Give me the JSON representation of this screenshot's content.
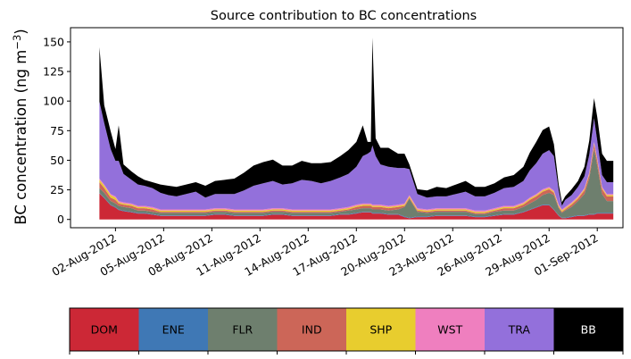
{
  "chart_data": {
    "type": "area",
    "stacked": true,
    "title": "Source contribution to BC concentrations",
    "xlabel": "",
    "ylabel": "BC concentration (ng m",
    "ylabel_superscript": "−3",
    "ylabel_close": ")",
    "ylim": [
      -7,
      162
    ],
    "xlim_days": [
      -1.8,
      32.6
    ],
    "x_origin": "01-Aug-2012",
    "y_ticks": [
      0,
      25,
      50,
      75,
      100,
      125,
      150
    ],
    "y_tick_labels": [
      "0",
      "25",
      "50",
      "75",
      "100",
      "125",
      "150"
    ],
    "x_ticks_days": [
      1,
      4,
      7,
      10,
      13,
      16,
      19,
      22,
      25,
      28,
      31
    ],
    "x_tick_labels": [
      "02-Aug-2012",
      "05-Aug-2012",
      "08-Aug-2012",
      "11-Aug-2012",
      "14-Aug-2012",
      "17-Aug-2012",
      "20-Aug-2012",
      "23-Aug-2012",
      "26-Aug-2012",
      "29-Aug-2012",
      "01-Sep-2012"
    ],
    "x": [
      0,
      0.3,
      0.7,
      1.0,
      1.2,
      1.5,
      2.0,
      2.4,
      2.8,
      3.3,
      3.8,
      4.3,
      4.8,
      5.4,
      6.0,
      6.6,
      7.2,
      7.8,
      8.4,
      9.0,
      9.6,
      10.2,
      10.8,
      11.4,
      12.0,
      12.6,
      13.2,
      13.8,
      14.4,
      15.0,
      15.5,
      16.0,
      16.4,
      16.7,
      16.9,
      17.0,
      17.2,
      17.5,
      18.0,
      18.6,
      19.0,
      19.3,
      19.8,
      20.4,
      21.0,
      21.6,
      22.2,
      22.8,
      23.4,
      24.0,
      24.6,
      25.2,
      25.8,
      26.4,
      26.8,
      27.2,
      27.6,
      28.0,
      28.3,
      28.6,
      28.8,
      29.0,
      29.4,
      29.8,
      30.2,
      30.5,
      30.8,
      31.0,
      31.3,
      31.6,
      32.0
    ],
    "series": [
      {
        "name": "DOM",
        "color": "#cc2836",
        "values": [
          22,
          18,
          12,
          10,
          8,
          7,
          6,
          5,
          5,
          4,
          3,
          3,
          3,
          3,
          3,
          3,
          4,
          4,
          3,
          3,
          3,
          3,
          4,
          4,
          3,
          3,
          3,
          3,
          3,
          4,
          4,
          5,
          6,
          6,
          6,
          5,
          5,
          5,
          4,
          4,
          2,
          1,
          2,
          2,
          3,
          3,
          3,
          3,
          2,
          2,
          3,
          4,
          4,
          6,
          8,
          10,
          12,
          12,
          8,
          3,
          1,
          1,
          2,
          3,
          3,
          4,
          4,
          5,
          5,
          5,
          5
        ]
      },
      {
        "name": "ENE",
        "color": "#3f78b5",
        "values": [
          0.5,
          0.5,
          0.5,
          0.5,
          0.5,
          0.5,
          0.5,
          0.5,
          0.5,
          0.5,
          0.5,
          0.5,
          0.5,
          0.5,
          0.5,
          0.5,
          0.5,
          0.5,
          0.5,
          0.5,
          0.5,
          0.5,
          0.5,
          0.5,
          0.5,
          0.5,
          0.5,
          0.5,
          0.5,
          0.5,
          0.5,
          0.5,
          0.5,
          0.5,
          0.5,
          0.5,
          0.5,
          0.5,
          0.5,
          0.5,
          0.5,
          0.5,
          0.5,
          0.5,
          0.5,
          0.5,
          0.5,
          0.5,
          0.5,
          0.5,
          0.5,
          0.5,
          0.5,
          0.5,
          0.5,
          0.5,
          0.5,
          0.5,
          0.5,
          0.5,
          0.5,
          0.5,
          0.5,
          0.5,
          0.5,
          0.5,
          0.5,
          0.5,
          0.5,
          0.5,
          0.5
        ]
      },
      {
        "name": "FLR",
        "color": "#6e7f6e",
        "values": [
          4,
          4,
          3,
          3,
          3,
          3,
          3,
          2,
          2,
          2,
          2,
          2,
          2,
          2,
          2,
          2,
          2,
          2,
          2,
          2,
          2,
          2,
          2,
          2,
          2,
          2,
          2,
          2,
          2,
          2,
          3,
          3,
          3,
          3,
          3,
          3,
          3,
          3,
          3,
          4,
          8,
          16,
          4,
          3,
          3,
          3,
          3,
          3,
          2,
          2,
          3,
          3,
          3,
          4,
          5,
          6,
          8,
          10,
          12,
          6,
          4,
          6,
          8,
          12,
          18,
          30,
          55,
          40,
          16,
          10,
          10
        ]
      },
      {
        "name": "IND",
        "color": "#cc6658",
        "values": [
          5,
          4,
          3,
          3,
          2,
          2,
          2,
          2,
          2,
          2,
          1,
          1,
          1,
          1,
          1,
          1,
          1,
          1,
          1,
          1,
          1,
          1,
          1,
          1,
          1,
          1,
          1,
          1,
          1,
          1,
          1,
          2,
          2,
          2,
          2,
          2,
          2,
          2,
          2,
          2,
          1,
          1,
          1,
          1,
          1,
          1,
          1,
          1,
          1,
          1,
          1,
          2,
          2,
          2,
          3,
          3,
          3,
          3,
          2,
          1,
          1,
          1,
          2,
          2,
          3,
          3,
          4,
          4,
          4,
          4,
          4
        ]
      },
      {
        "name": "SHP",
        "color": "#e8cd2e",
        "values": [
          2,
          2,
          2,
          2,
          1,
          1,
          1,
          1,
          1,
          1,
          1,
          1,
          1,
          1,
          1,
          1,
          1,
          1,
          1,
          1,
          1,
          1,
          1,
          1,
          1,
          1,
          1,
          1,
          1,
          1,
          1,
          1,
          1,
          1,
          1,
          1,
          1,
          1,
          1,
          1,
          1,
          1,
          1,
          1,
          1,
          1,
          1,
          1,
          1,
          1,
          1,
          1,
          1,
          1,
          1,
          1,
          1,
          1,
          1,
          1,
          1,
          1,
          1,
          1,
          1,
          1,
          1,
          1,
          1,
          1,
          1
        ]
      },
      {
        "name": "WST",
        "color": "#ef7fbf",
        "values": [
          1,
          1,
          1,
          1,
          1,
          1,
          1,
          1,
          1,
          1,
          1,
          1,
          1,
          1,
          1,
          1,
          1,
          1,
          1,
          1,
          1,
          1,
          1,
          1,
          1,
          1,
          1,
          1,
          1,
          1,
          1,
          1,
          1,
          1,
          1,
          1,
          1,
          1,
          1,
          1,
          1,
          1,
          1,
          1,
          1,
          1,
          1,
          1,
          1,
          1,
          1,
          1,
          1,
          1,
          1,
          1,
          1,
          1,
          1,
          1,
          1,
          1,
          1,
          1,
          1,
          1,
          1,
          1,
          1,
          1,
          1
        ]
      },
      {
        "name": "TRA",
        "color": "#9370db",
        "values": [
          65,
          52,
          38,
          30,
          34,
          24,
          20,
          18,
          17,
          16,
          14,
          12,
          11,
          13,
          15,
          10,
          12,
          12,
          13,
          16,
          20,
          22,
          23,
          20,
          22,
          25,
          24,
          22,
          24,
          26,
          28,
          32,
          40,
          42,
          44,
          50,
          41,
          34,
          33,
          31,
          30,
          22,
          12,
          10,
          10,
          10,
          12,
          14,
          12,
          12,
          13,
          15,
          16,
          18,
          23,
          26,
          30,
          31,
          29,
          12,
          3,
          6,
          6,
          8,
          10,
          15,
          20,
          15,
          10,
          10,
          10
        ]
      },
      {
        "name": "BB",
        "color": "#000000",
        "values": [
          46,
          15,
          15,
          10,
          30,
          8,
          7,
          7,
          5,
          5,
          7,
          8,
          8,
          8,
          8,
          10,
          11,
          12,
          13,
          15,
          17,
          18,
          18,
          16,
          15,
          16,
          15,
          17,
          16,
          18,
          20,
          21,
          26,
          10,
          8,
          91,
          15,
          14,
          16,
          12,
          12,
          4,
          4,
          6,
          8,
          7,
          8,
          9,
          8,
          8,
          8,
          9,
          10,
          12,
          15,
          18,
          20,
          20,
          10,
          5,
          3,
          3,
          5,
          5,
          8,
          12,
          17,
          20,
          18,
          18,
          18
        ]
      }
    ],
    "legend": [
      "DOM",
      "ENE",
      "FLR",
      "IND",
      "SHP",
      "WST",
      "TRA",
      "BB"
    ],
    "legend_placement": "bottom colorbar",
    "grid": false
  }
}
